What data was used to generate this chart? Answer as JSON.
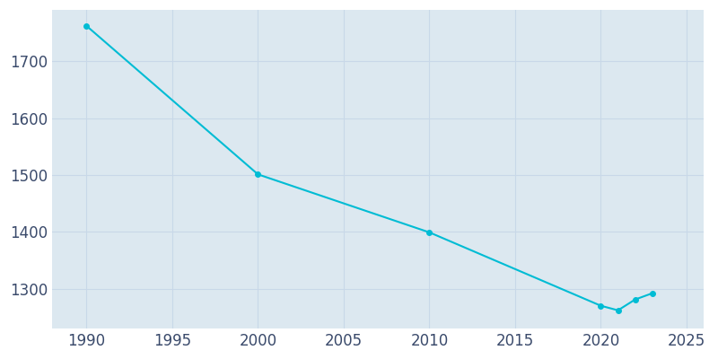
{
  "years": [
    1990,
    2000,
    2010,
    2020,
    2021,
    2022,
    2023
  ],
  "population": [
    1762,
    1501,
    1399,
    1270,
    1262,
    1281,
    1292
  ],
  "line_color": "#00bcd4",
  "bg_color": "#dce8f0",
  "fig_bg_color": "#ffffff",
  "grid_color": "#c8d8e8",
  "xlim": [
    1988,
    2026
  ],
  "ylim": [
    1230,
    1790
  ],
  "xticks": [
    1990,
    1995,
    2000,
    2005,
    2010,
    2015,
    2020,
    2025
  ],
  "yticks": [
    1300,
    1400,
    1500,
    1600,
    1700
  ],
  "tick_label_color": "#3a4a6b",
  "tick_fontsize": 12,
  "figsize": [
    8.0,
    4.0
  ],
  "dpi": 100,
  "linewidth": 1.5,
  "markersize": 4
}
